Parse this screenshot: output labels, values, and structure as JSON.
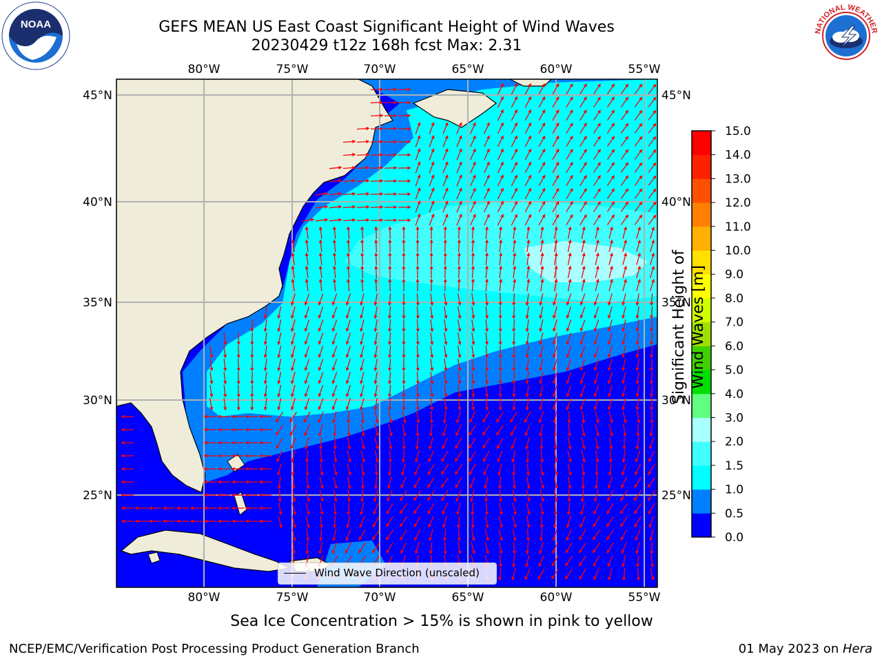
{
  "title": {
    "line1": "GEFS MEAN US East Coast Significant Height of Wind Waves",
    "line2": "20230429 t12z 168h fcst   Max: 2.31"
  },
  "map": {
    "lon_labels": [
      "80°W",
      "75°W",
      "70°W",
      "65°W",
      "60°W",
      "55°W"
    ],
    "lat_labels": [
      "45°N",
      "40°N",
      "35°N",
      "30°N",
      "25°N"
    ],
    "legend_label": "Wind Wave Direction (unscaled)",
    "land_color": "#efedda",
    "arrow_color": "#ff0000"
  },
  "colorbar": {
    "title": "Significant Height of Wind Waves [m]",
    "ticks": [
      "0.0",
      "0.5",
      "1.0",
      "1.5",
      "2.0",
      "3.0",
      "4.0",
      "5.0",
      "6.0",
      "7.0",
      "8.0",
      "9.0",
      "10.0",
      "11.0",
      "12.0",
      "13.0",
      "14.0",
      "15.0"
    ],
    "colors": [
      "#0000ff",
      "#0080ff",
      "#00ffff",
      "#40ffff",
      "#aaffff",
      "#60ff80",
      "#00e000",
      "#40d000",
      "#a0e000",
      "#d0ff00",
      "#ffff00",
      "#ffe000",
      "#ffb000",
      "#ff8000",
      "#ff5000",
      "#ff2000",
      "#ff0000"
    ]
  },
  "notes": {
    "sea_ice": "Sea Ice Concentration > 15% is shown in pink to yellow"
  },
  "footer": {
    "left": "NCEP/EMC/Verification Post Processing Product Generation Branch",
    "date": "01 May 2023 on ",
    "host": "Hera"
  },
  "logos": {
    "noaa_text": "NOAA",
    "nws_text": "NATIONAL WEATHER SERVICE"
  }
}
